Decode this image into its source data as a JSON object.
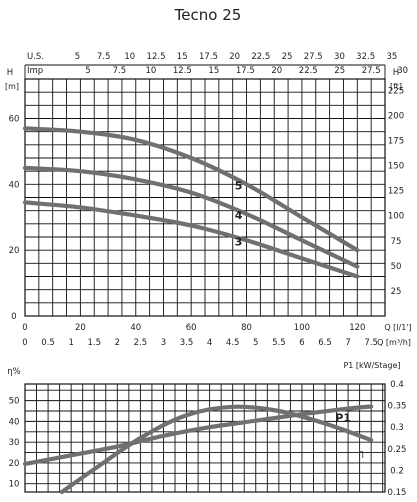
{
  "title": "Tecno 25",
  "colors": {
    "curve": "#707070",
    "grid": "#111111"
  },
  "chart_data": [
    {
      "type": "line",
      "title": "Tecno 25",
      "x_axes": {
        "us_label": "U.S.",
        "us_ticks": [
          "5",
          "7.5",
          "10",
          "12.5",
          "15",
          "17.5",
          "20",
          "22.5",
          "25",
          "27.5",
          "30",
          "32.5",
          "35"
        ],
        "imp_label": "Imp",
        "imp_ticks": [
          "5",
          "7.5",
          "10",
          "12.5",
          "15",
          "17.5",
          "20",
          "22.5",
          "25",
          "27.5",
          "30"
        ],
        "q_label": "Q [l/1']",
        "q_ticks": [
          "0",
          "20",
          "40",
          "60",
          "80",
          "100",
          "120"
        ],
        "xlim": [
          0,
          130
        ]
      },
      "y_axes": {
        "left_label": "H",
        "left_unit": "[m]",
        "left_ticks": [
          "0",
          "20",
          "40",
          "60"
        ],
        "ylim": [
          0,
          72
        ],
        "right_unit": "[ft]",
        "right_ticks": [
          "25",
          "50",
          "75",
          "100",
          "125",
          "150",
          "175",
          "200",
          "225"
        ]
      },
      "series": [
        {
          "name": "5",
          "x": [
            0,
            20,
            40,
            60,
            80,
            100,
            120
          ],
          "y": [
            57,
            56,
            53.5,
            48,
            40,
            30,
            20
          ]
        },
        {
          "name": "4",
          "x": [
            0,
            20,
            40,
            60,
            80,
            100,
            120
          ],
          "y": [
            45,
            44,
            41.5,
            37.5,
            31,
            23,
            15
          ]
        },
        {
          "name": "3",
          "x": [
            0,
            20,
            40,
            60,
            80,
            100,
            120
          ],
          "y": [
            34.5,
            33,
            30.5,
            27.5,
            23,
            17.5,
            12
          ]
        }
      ],
      "grid": true
    },
    {
      "type": "line",
      "x_axes": {
        "q_label": "Q [m³/h]",
        "q_ticks": [
          "0",
          "0.5",
          "1",
          "1.5",
          "2",
          "2.5",
          "3",
          "3.5",
          "4",
          "4.5",
          "5",
          "5.5",
          "6",
          "6.5",
          "7",
          "7.5"
        ],
        "xlim": [
          0,
          7.8
        ]
      },
      "y_axes": {
        "left_label": "η%",
        "left_ticks": [
          "10",
          "20",
          "30",
          "40",
          "50"
        ],
        "ylim": [
          6,
          58
        ],
        "right_label": "P1 [kW/Stage]",
        "right_ticks": [
          "0.15",
          "0.2",
          "0.25",
          "0.3",
          "0.35",
          "0.4"
        ],
        "ylim_right": [
          0.15,
          0.4
        ]
      },
      "series": [
        {
          "name": "P1",
          "axis": "right",
          "x": [
            0,
            1,
            2,
            3,
            4,
            5,
            6,
            7,
            7.5
          ],
          "y": [
            0.215,
            0.235,
            0.255,
            0.28,
            0.3,
            0.315,
            0.33,
            0.343,
            0.348
          ]
        },
        {
          "name": "η",
          "axis": "left",
          "x": [
            0.8,
            1.5,
            2.5,
            3.5,
            4.5,
            5.5,
            6.5,
            7.5
          ],
          "y": [
            6,
            17,
            32,
            43,
            47,
            45,
            39,
            31
          ]
        }
      ],
      "grid": true
    }
  ]
}
